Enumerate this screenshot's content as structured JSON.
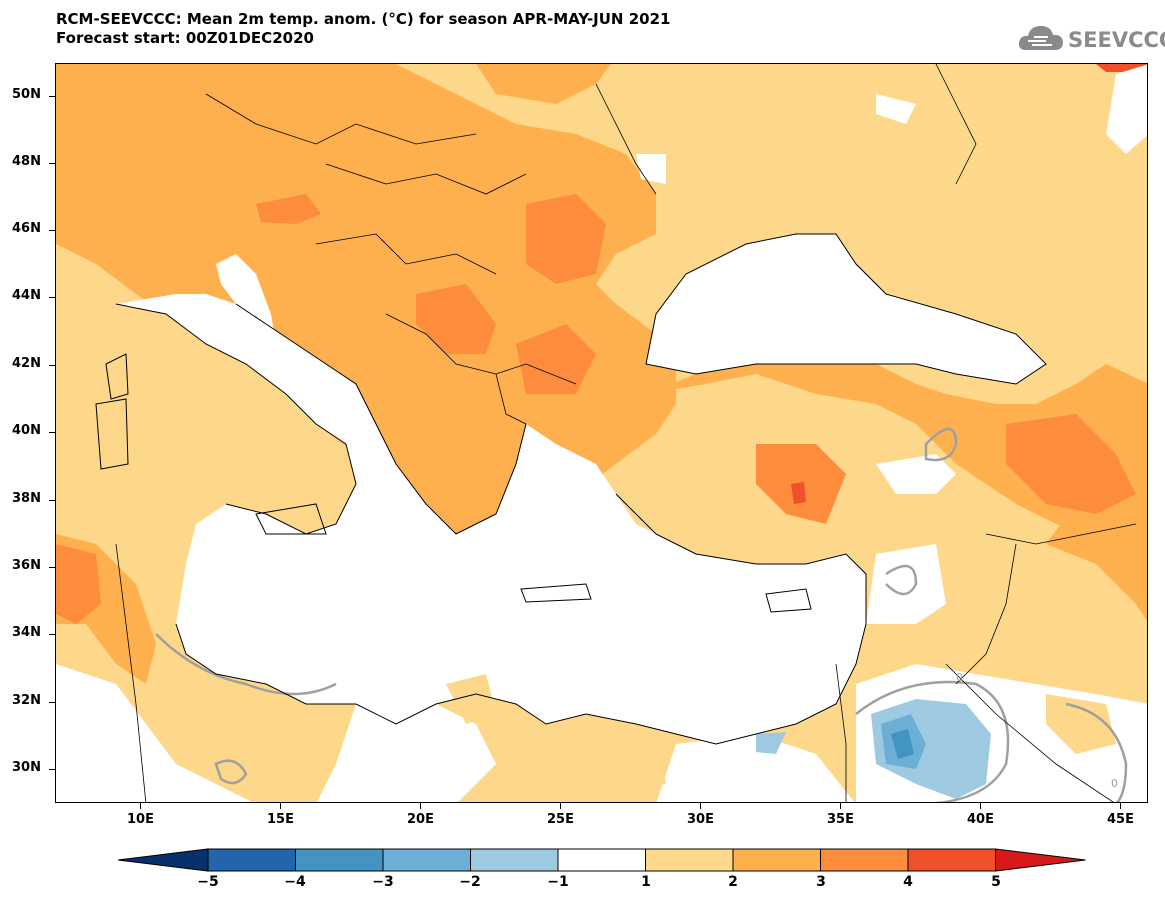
{
  "title": {
    "line1": "RCM-SEEVCCC: Mean 2m temp. anom. (°C) for season APR-MAY-JUN 2021",
    "line2": "Forecast start: 00Z01DEC2020"
  },
  "logo": {
    "text": "SEEVCCC",
    "icon": "cloud-icon"
  },
  "map": {
    "lon_range": [
      7,
      46
    ],
    "lat_range": [
      29,
      51
    ],
    "lat_ticks": [
      "50N",
      "48N",
      "46N",
      "44N",
      "42N",
      "40N",
      "38N",
      "36N",
      "34N",
      "32N",
      "30N"
    ],
    "lon_ticks": [
      "10E",
      "15E",
      "20E",
      "25E",
      "30E",
      "35E",
      "40E",
      "45E"
    ],
    "contour_label": "0"
  },
  "colorbar": {
    "labels": [
      "−5",
      "−4",
      "−3",
      "−2",
      "−1",
      "1",
      "2",
      "3",
      "4",
      "5"
    ],
    "colors": [
      "#08306b",
      "#2166ac",
      "#4393c3",
      "#6baed6",
      "#9ecae1",
      "#ffffff",
      "#fed88a",
      "#fdb04d",
      "#fd8c3c",
      "#f0502a",
      "#d7191c"
    ]
  }
}
